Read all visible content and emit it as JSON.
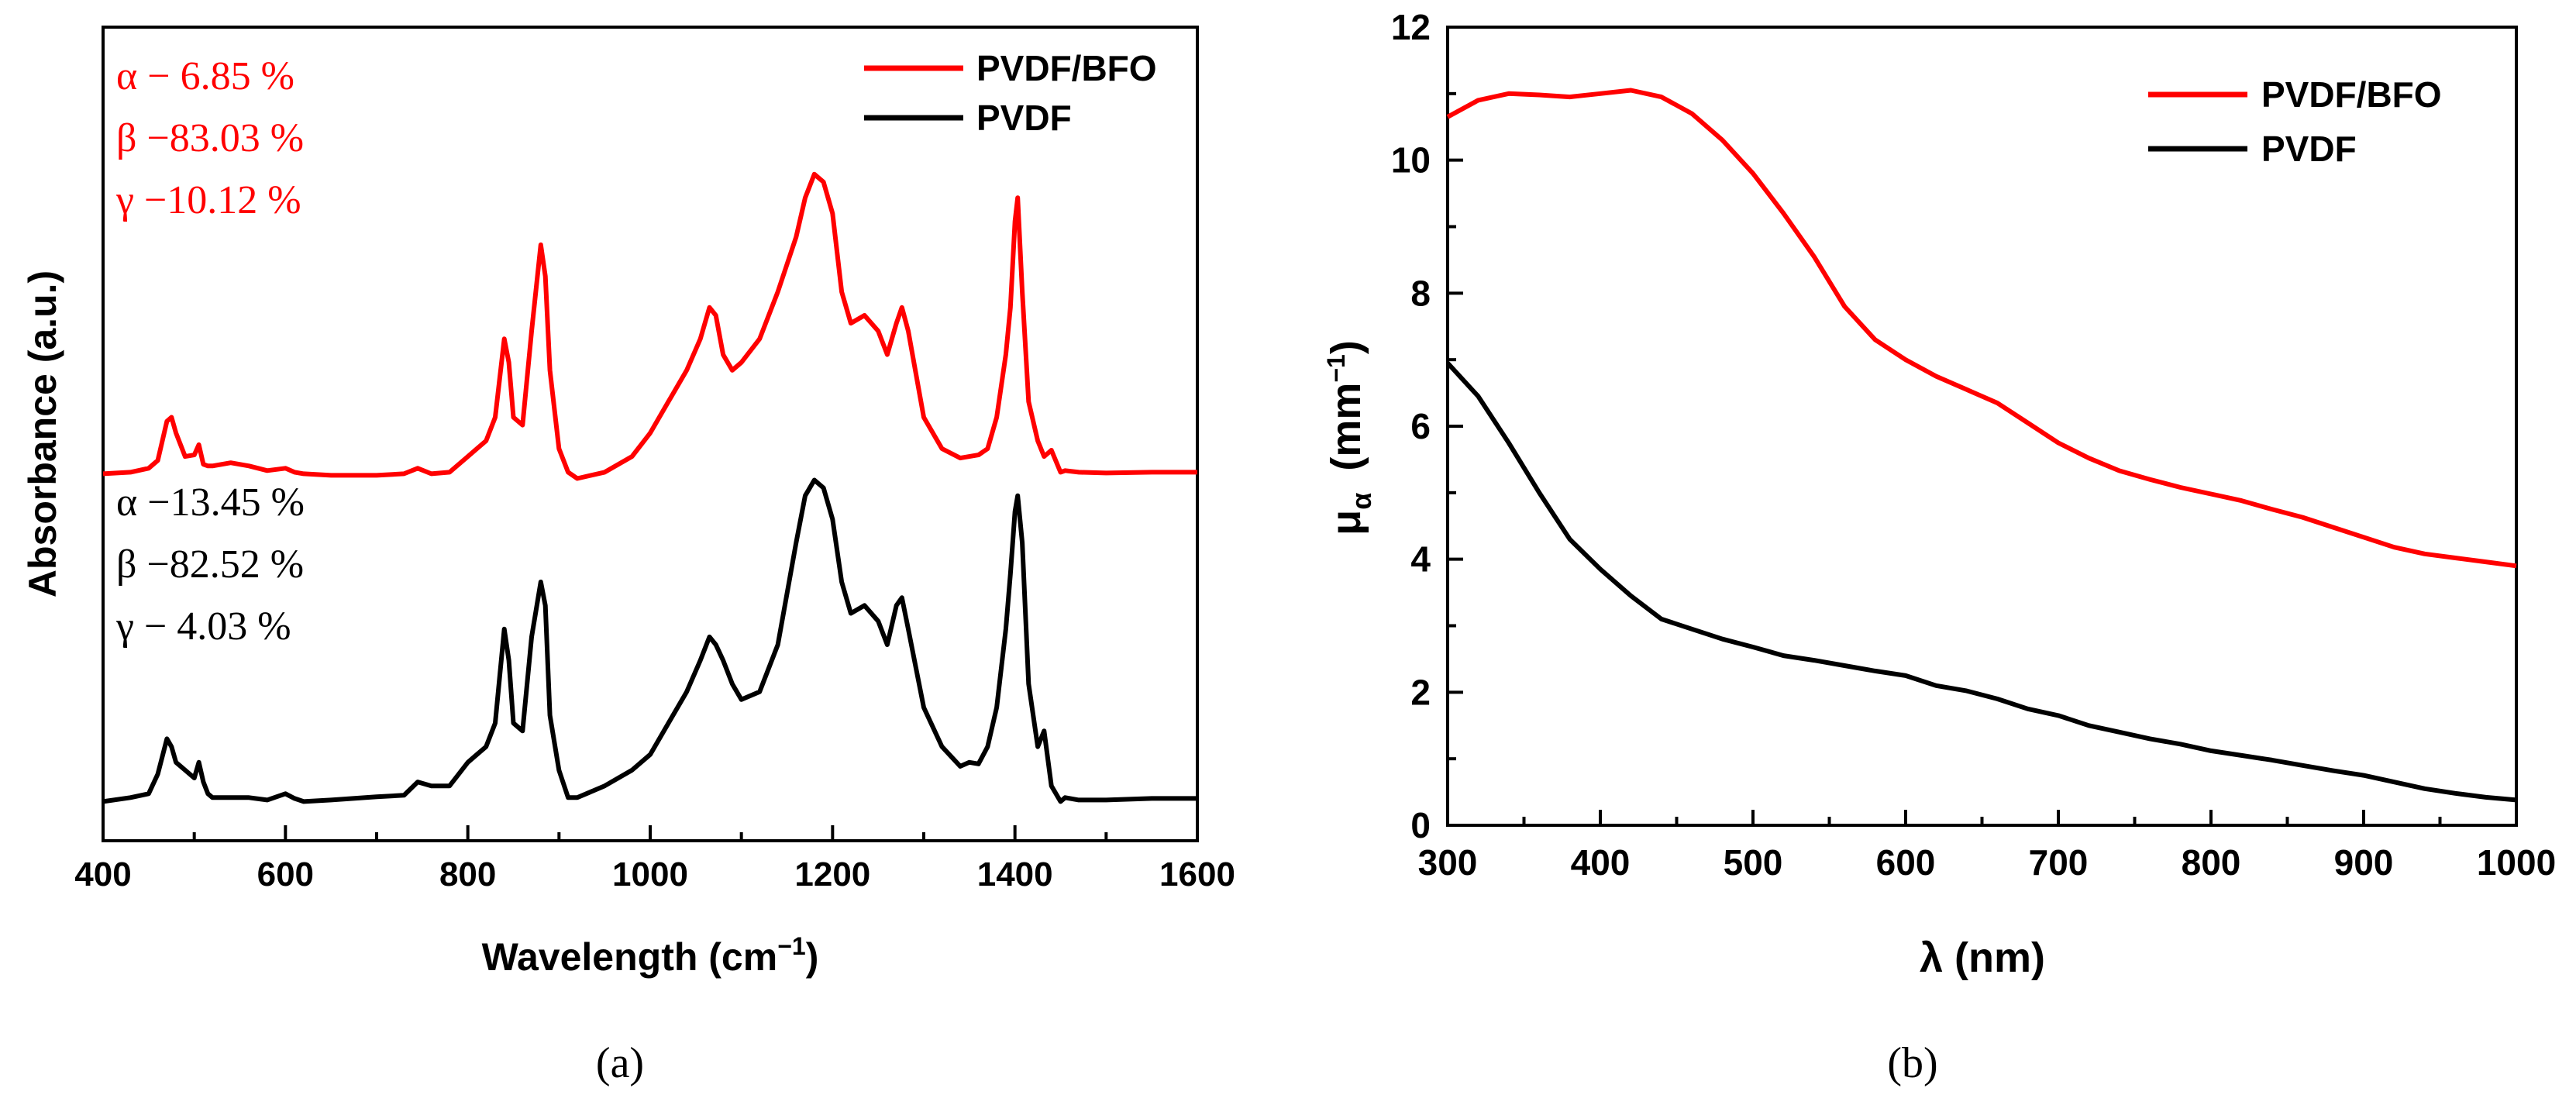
{
  "chart_data": [
    {
      "panel_label": "(a)",
      "type": "line",
      "title": "",
      "xlabel": "Wavelength (cm",
      "xlabel_sup": "−1",
      "xlabel_suffix": ")",
      "ylabel": "Absorbance (a.u.)",
      "xlim": [
        400,
        1600
      ],
      "ylim": [
        0,
        1
      ],
      "yticks_shown": false,
      "xticks": [
        "400",
        "600",
        "800",
        "1000",
        "1200",
        "1400",
        "1600"
      ],
      "legend": {
        "position": "top-right",
        "entries": [
          "PVDF/BFO",
          "PVDF"
        ]
      },
      "annotations": {
        "PVDF/BFO": [
          "α − 6.85 %",
          "β −83.03 %",
          "γ −10.12 %"
        ],
        "PVDF": [
          "α −13.45 %",
          "β −82.52 %",
          "γ −  4.03 %"
        ]
      },
      "series": [
        {
          "name": "PVDF/BFO",
          "color": "#ff0000",
          "x": [
            400,
            430,
            450,
            460,
            470,
            475,
            480,
            490,
            500,
            505,
            510,
            515,
            520,
            540,
            560,
            580,
            600,
            610,
            620,
            650,
            700,
            730,
            745,
            760,
            780,
            800,
            810,
            820,
            830,
            840,
            845,
            850,
            860,
            870,
            880,
            885,
            890,
            900,
            910,
            920,
            950,
            980,
            1000,
            1020,
            1040,
            1055,
            1065,
            1072,
            1080,
            1090,
            1100,
            1120,
            1140,
            1160,
            1170,
            1180,
            1190,
            1200,
            1210,
            1220,
            1235,
            1250,
            1260,
            1270,
            1276,
            1283,
            1300,
            1320,
            1340,
            1350,
            1360,
            1370,
            1380,
            1390,
            1395,
            1400,
            1403,
            1408,
            1415,
            1425,
            1432,
            1440,
            1450,
            1455,
            1470,
            1500,
            1550,
            1600
          ],
          "y": [
            0.468,
            0.47,
            0.475,
            0.485,
            0.535,
            0.54,
            0.52,
            0.49,
            0.492,
            0.505,
            0.48,
            0.478,
            0.478,
            0.482,
            0.478,
            0.472,
            0.475,
            0.47,
            0.468,
            0.466,
            0.466,
            0.468,
            0.475,
            0.468,
            0.47,
            0.49,
            0.5,
            0.51,
            0.54,
            0.64,
            0.61,
            0.54,
            0.53,
            0.65,
            0.76,
            0.72,
            0.6,
            0.5,
            0.47,
            0.462,
            0.47,
            0.49,
            0.52,
            0.56,
            0.6,
            0.64,
            0.68,
            0.67,
            0.62,
            0.6,
            0.61,
            0.64,
            0.7,
            0.77,
            0.82,
            0.85,
            0.84,
            0.8,
            0.7,
            0.66,
            0.67,
            0.65,
            0.62,
            0.66,
            0.68,
            0.65,
            0.54,
            0.5,
            0.488,
            0.49,
            0.492,
            0.5,
            0.54,
            0.62,
            0.68,
            0.79,
            0.82,
            0.7,
            0.56,
            0.51,
            0.49,
            0.498,
            0.47,
            0.472,
            0.47,
            0.469,
            0.47,
            0.47
          ]
        },
        {
          "name": "PVDF",
          "color": "#000000",
          "x": [
            400,
            430,
            450,
            460,
            470,
            475,
            480,
            490,
            500,
            505,
            510,
            515,
            520,
            540,
            560,
            580,
            600,
            610,
            620,
            650,
            700,
            730,
            745,
            760,
            780,
            800,
            810,
            820,
            830,
            840,
            845,
            850,
            860,
            870,
            880,
            885,
            890,
            900,
            910,
            920,
            950,
            980,
            1000,
            1020,
            1040,
            1055,
            1065,
            1072,
            1080,
            1090,
            1100,
            1120,
            1140,
            1160,
            1170,
            1180,
            1190,
            1200,
            1210,
            1220,
            1235,
            1250,
            1260,
            1270,
            1276,
            1283,
            1300,
            1320,
            1340,
            1350,
            1360,
            1370,
            1380,
            1390,
            1395,
            1400,
            1403,
            1408,
            1415,
            1425,
            1432,
            1440,
            1450,
            1455,
            1470,
            1500,
            1550,
            1600
          ],
          "y": [
            0.05,
            0.055,
            0.06,
            0.085,
            0.13,
            0.12,
            0.1,
            0.09,
            0.08,
            0.1,
            0.075,
            0.06,
            0.055,
            0.055,
            0.055,
            0.052,
            0.06,
            0.054,
            0.05,
            0.052,
            0.056,
            0.058,
            0.075,
            0.07,
            0.07,
            0.1,
            0.11,
            0.12,
            0.15,
            0.27,
            0.23,
            0.15,
            0.14,
            0.26,
            0.33,
            0.3,
            0.16,
            0.09,
            0.055,
            0.055,
            0.07,
            0.09,
            0.11,
            0.15,
            0.19,
            0.23,
            0.26,
            0.25,
            0.23,
            0.2,
            0.18,
            0.19,
            0.25,
            0.38,
            0.44,
            0.46,
            0.45,
            0.41,
            0.33,
            0.29,
            0.3,
            0.28,
            0.25,
            0.3,
            0.31,
            0.27,
            0.17,
            0.12,
            0.095,
            0.1,
            0.098,
            0.12,
            0.17,
            0.27,
            0.34,
            0.42,
            0.44,
            0.38,
            0.2,
            0.12,
            0.14,
            0.07,
            0.05,
            0.055,
            0.052,
            0.052,
            0.054,
            0.054
          ]
        }
      ]
    },
    {
      "panel_label": "(b)",
      "type": "line",
      "title": "",
      "xlabel": "λ (nm)",
      "ylabel": "μ",
      "ylabel_sub": "α",
      "ylabel_unit": "(mm",
      "ylabel_unit_sup": "−1",
      "ylabel_unit_suffix": ")",
      "xlim": [
        300,
        1000
      ],
      "ylim": [
        0,
        12
      ],
      "xticks": [
        "300",
        "400",
        "500",
        "600",
        "700",
        "800",
        "900",
        "1000"
      ],
      "yticks": [
        "0",
        "2",
        "4",
        "6",
        "8",
        "10",
        "12"
      ],
      "legend": {
        "position": "top-right",
        "entries": [
          "PVDF/BFO",
          "PVDF"
        ]
      },
      "series": [
        {
          "name": "PVDF/BFO",
          "color": "#ff0000",
          "x": [
            300,
            320,
            340,
            360,
            380,
            400,
            420,
            440,
            460,
            480,
            500,
            520,
            540,
            560,
            580,
            600,
            620,
            640,
            660,
            680,
            700,
            720,
            740,
            760,
            780,
            800,
            820,
            840,
            860,
            880,
            900,
            920,
            940,
            960,
            980,
            1000
          ],
          "y": [
            10.65,
            10.9,
            11.0,
            10.98,
            10.95,
            11.0,
            11.05,
            10.95,
            10.7,
            10.3,
            9.8,
            9.2,
            8.55,
            7.8,
            7.3,
            7.0,
            6.75,
            6.55,
            6.35,
            6.05,
            5.75,
            5.52,
            5.33,
            5.2,
            5.08,
            4.98,
            4.88,
            4.75,
            4.63,
            4.48,
            4.33,
            4.18,
            4.08,
            4.02,
            3.96,
            3.9
          ]
        },
        {
          "name": "PVDF",
          "color": "#000000",
          "x": [
            300,
            320,
            340,
            360,
            380,
            400,
            420,
            440,
            460,
            480,
            500,
            520,
            540,
            560,
            580,
            600,
            620,
            640,
            660,
            680,
            700,
            720,
            740,
            760,
            780,
            800,
            820,
            840,
            860,
            880,
            900,
            920,
            940,
            960,
            980,
            1000
          ],
          "y": [
            6.95,
            6.45,
            5.75,
            5.0,
            4.3,
            3.85,
            3.45,
            3.1,
            2.95,
            2.8,
            2.68,
            2.55,
            2.48,
            2.4,
            2.32,
            2.25,
            2.1,
            2.02,
            1.9,
            1.75,
            1.65,
            1.5,
            1.4,
            1.3,
            1.22,
            1.12,
            1.05,
            0.98,
            0.9,
            0.82,
            0.75,
            0.65,
            0.55,
            0.48,
            0.42,
            0.38
          ]
        }
      ]
    }
  ]
}
